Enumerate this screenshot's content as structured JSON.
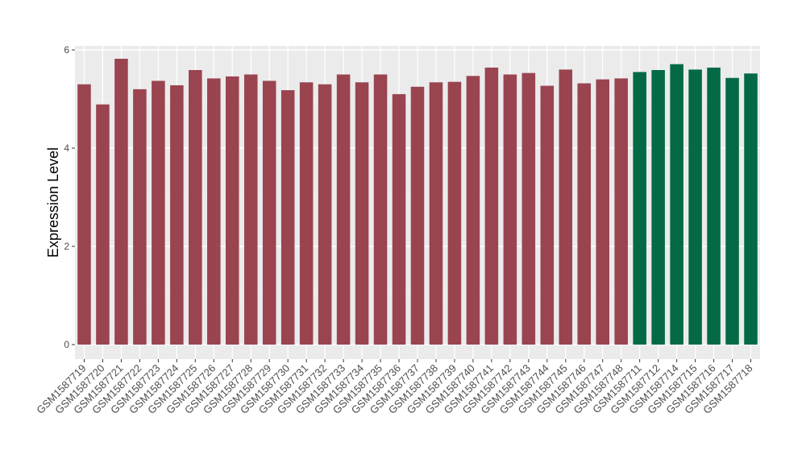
{
  "chart_data": {
    "type": "bar",
    "ylabel": "Expression Level",
    "xlabel": "",
    "ylim": [
      0,
      6
    ],
    "yticks": [
      "0",
      "2",
      "4",
      "6"
    ],
    "grid": true,
    "colors": {
      "group1": "#9a4450",
      "group2": "#046a45",
      "panel": "#ebebeb",
      "grid_major": "#ffffff"
    },
    "categories": [
      "GSM1587719",
      "GSM1587720",
      "GSM1587721",
      "GSM1587722",
      "GSM1587723",
      "GSM1587724",
      "GSM1587725",
      "GSM1587726",
      "GSM1587727",
      "GSM1587728",
      "GSM1587729",
      "GSM1587730",
      "GSM1587731",
      "GSM1587732",
      "GSM1587733",
      "GSM1587734",
      "GSM1587735",
      "GSM1587736",
      "GSM1587737",
      "GSM1587738",
      "GSM1587739",
      "GSM1587740",
      "GSM1587741",
      "GSM1587742",
      "GSM1587743",
      "GSM1587744",
      "GSM1587745",
      "GSM1587746",
      "GSM1587747",
      "GSM1587748",
      "GSM1587711",
      "GSM1587712",
      "GSM1587714",
      "GSM1587715",
      "GSM1587716",
      "GSM1587717",
      "GSM1587718"
    ],
    "values": [
      5.3,
      4.89,
      5.82,
      5.2,
      5.37,
      5.28,
      5.59,
      5.42,
      5.46,
      5.5,
      5.37,
      5.18,
      5.34,
      5.3,
      5.5,
      5.34,
      5.5,
      5.1,
      5.25,
      5.34,
      5.35,
      5.47,
      5.64,
      5.5,
      5.53,
      5.27,
      5.6,
      5.32,
      5.4,
      5.42,
      5.55,
      5.59,
      5.71,
      5.6,
      5.64,
      5.43,
      5.52
    ],
    "groups": [
      1,
      1,
      1,
      1,
      1,
      1,
      1,
      1,
      1,
      1,
      1,
      1,
      1,
      1,
      1,
      1,
      1,
      1,
      1,
      1,
      1,
      1,
      1,
      1,
      1,
      1,
      1,
      1,
      1,
      1,
      2,
      2,
      2,
      2,
      2,
      2,
      2
    ]
  }
}
